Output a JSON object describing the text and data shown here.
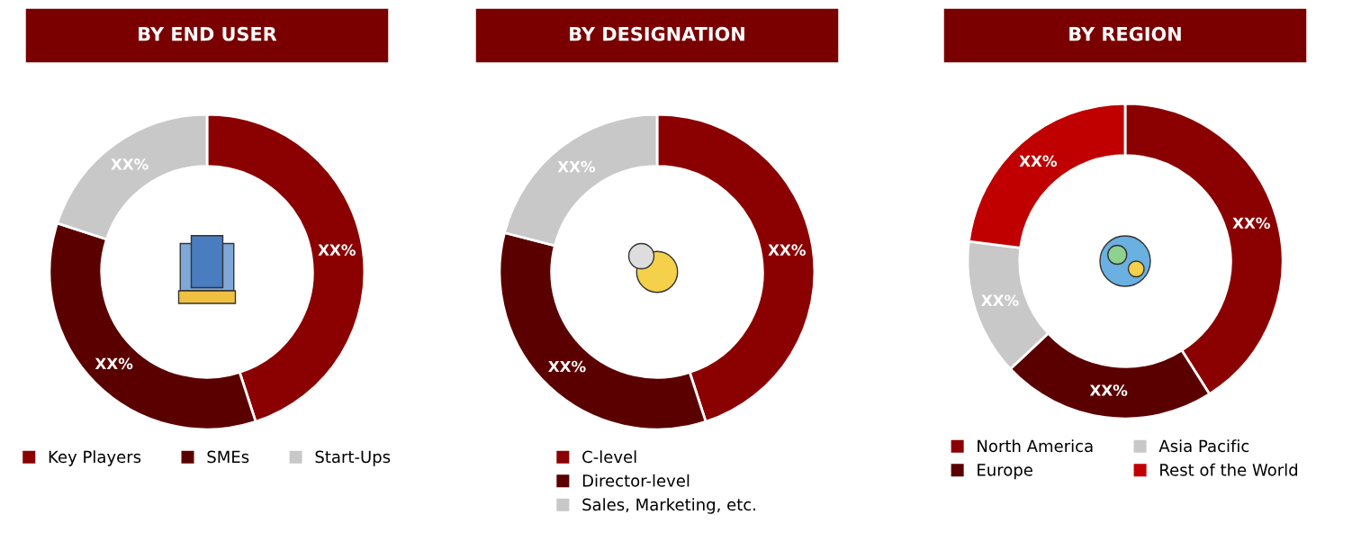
{
  "chart_data": [
    {
      "type": "donut",
      "title": "BY END USER",
      "categories": [
        "Key Players",
        "SMEs",
        "Start-Ups"
      ],
      "values": [
        45,
        35,
        20
      ],
      "colors": [
        "#8b0000",
        "#5a0000",
        "#c8c8c8"
      ],
      "value_labels": [
        "XX%",
        "XX%",
        "XX%"
      ],
      "legend": "bottom"
    },
    {
      "type": "donut",
      "title": "BY DESIGNATION",
      "categories": [
        "C-level",
        "Director-level",
        "Sales, Marketing, etc."
      ],
      "values": [
        45,
        34,
        21
      ],
      "colors": [
        "#8b0000",
        "#5a0000",
        "#c8c8c8"
      ],
      "value_labels": [
        "XX%",
        "XX%",
        "XX%"
      ],
      "legend": "bottom"
    },
    {
      "type": "donut",
      "title": "BY REGION",
      "categories": [
        "North America",
        "Europe",
        "Asia Pacific",
        "Rest of the World"
      ],
      "values": [
        41,
        22,
        14,
        23
      ],
      "colors": [
        "#8b0000",
        "#5a0000",
        "#c8c8c8",
        "#c00000"
      ],
      "value_labels": [
        "XX%",
        "XX%",
        "XX%",
        "XX%"
      ],
      "legend": "bottom"
    }
  ]
}
